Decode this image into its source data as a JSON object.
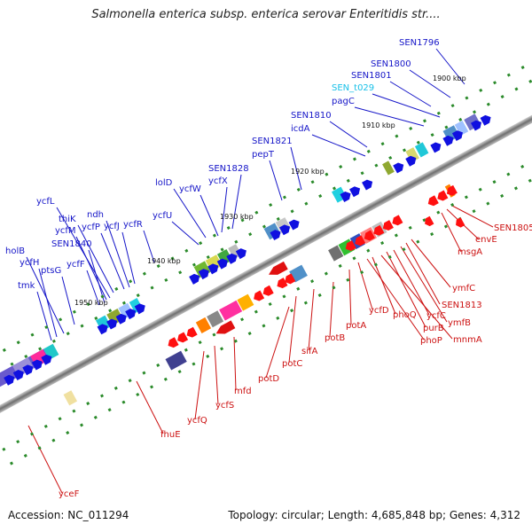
{
  "title": "Salmonella enterica subsp. enterica serovar Enteritidis str....",
  "accession": "Accession: NC_011294",
  "summary": "Topology: circular; Length: 4,685,848 bp; Genes: 4,312",
  "colors": {
    "forward_label": "#1515c8",
    "reverse_label": "#cc1111",
    "trna_label": "#18c0e8",
    "backbone": "#7a7a7a",
    "tick": "#2a8a2a"
  },
  "kbp_ticks": [
    "1900 kbp",
    "1910 kbp",
    "1920 kbp",
    "1930 kbp",
    "1940 kbp",
    "1950 kbp"
  ],
  "forward_labels": [
    "SEN1796",
    "SEN1800",
    "SEN1801",
    "SEN_t029",
    "pagC",
    "SEN1810",
    "icdA",
    "SEN1821",
    "pepT",
    "SEN1828",
    "ycfX",
    "ycfW",
    "lolD",
    "ycfU",
    "ycfR",
    "ycfJ",
    "ndh",
    "ycfP",
    "thiK",
    "ycfL",
    "ycfM",
    "SEN1840",
    "ycfF",
    "ptsG",
    "holB",
    "ycfH",
    "tmk"
  ],
  "reverse_labels": [
    "SEN1805",
    "envE",
    "msgA",
    "ymfC",
    "SEN1813",
    "ymfB",
    "ycfC",
    "purB",
    "mnmA",
    "phoQ",
    "phoP",
    "ycfD",
    "potA",
    "potB",
    "sifA",
    "potC",
    "potD",
    "mfd",
    "ycfS",
    "ycfQ",
    "fhuE",
    "yceF"
  ]
}
